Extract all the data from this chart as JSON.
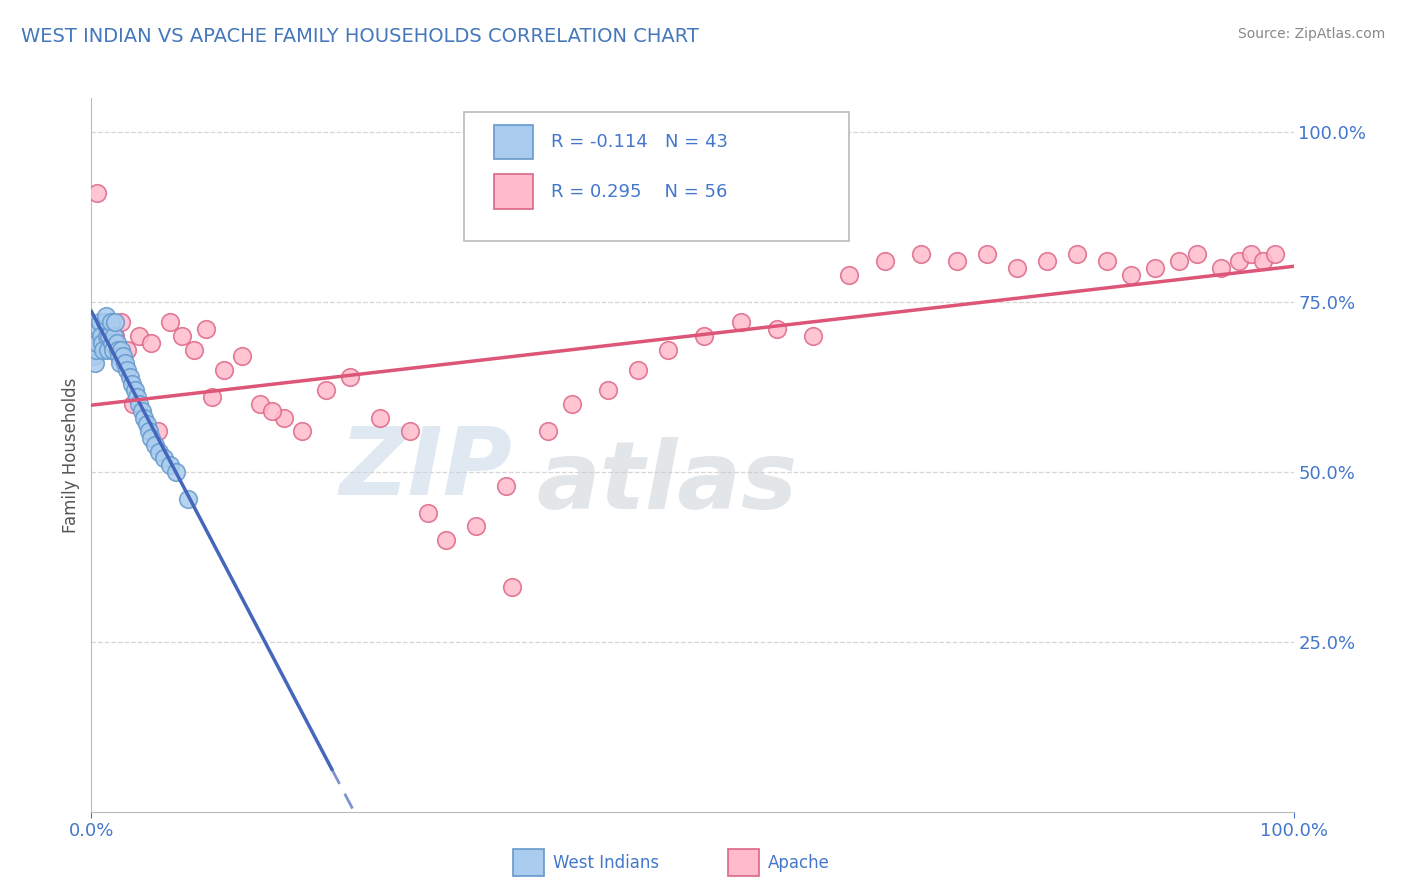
{
  "title": "WEST INDIAN VS APACHE FAMILY HOUSEHOLDS CORRELATION CHART",
  "source": "Source: ZipAtlas.com",
  "ylabel": "Family Households",
  "title_color": "#4477bb",
  "source_color": "#888888",
  "axis_label_color": "#555555",
  "tick_color": "#4477cc",
  "grid_color": "#cccccc",
  "background_color": "#ffffff",
  "west_indians_fill": "#aaccee",
  "west_indians_edge": "#6699cc",
  "apache_fill": "#ffbbcc",
  "apache_edge": "#dd6688",
  "trend_west_color": "#4466bb",
  "trend_apache_color": "#dd5577",
  "legend_r1": "R = -0.114",
  "legend_n1": "N = 43",
  "legend_r2": "R = 0.295",
  "legend_n2": "N = 56",
  "west_indians_label": "West Indians",
  "apache_label": "Apache",
  "xlim": [
    0.0,
    1.0
  ],
  "ylim": [
    0.0,
    1.05
  ],
  "ytick_positions": [
    0.25,
    0.5,
    0.75,
    1.0
  ],
  "ytick_labels": [
    "25.0%",
    "50.0%",
    "75.0%",
    "100.0%"
  ],
  "xtick_positions": [
    0.0,
    1.0
  ],
  "xtick_labels": [
    "0.0%",
    "100.0%"
  ],
  "west_indians_x": [
    0.002,
    0.003,
    0.004,
    0.005,
    0.006,
    0.007,
    0.008,
    0.009,
    0.01,
    0.011,
    0.012,
    0.013,
    0.014,
    0.015,
    0.016,
    0.017,
    0.018,
    0.019,
    0.02,
    0.021,
    0.022,
    0.023,
    0.024,
    0.025,
    0.026,
    0.028,
    0.03,
    0.032,
    0.034,
    0.036,
    0.038,
    0.04,
    0.042,
    0.044,
    0.046,
    0.048,
    0.05,
    0.053,
    0.056,
    0.06,
    0.065,
    0.07,
    0.08
  ],
  "west_indians_y": [
    0.67,
    0.66,
    0.68,
    0.69,
    0.71,
    0.72,
    0.7,
    0.69,
    0.68,
    0.72,
    0.73,
    0.7,
    0.68,
    0.7,
    0.72,
    0.69,
    0.68,
    0.7,
    0.72,
    0.69,
    0.68,
    0.67,
    0.66,
    0.68,
    0.67,
    0.66,
    0.65,
    0.64,
    0.63,
    0.62,
    0.61,
    0.6,
    0.59,
    0.58,
    0.57,
    0.56,
    0.55,
    0.54,
    0.53,
    0.52,
    0.51,
    0.5,
    0.46
  ],
  "apache_x": [
    0.005,
    0.015,
    0.02,
    0.025,
    0.03,
    0.04,
    0.05,
    0.065,
    0.075,
    0.085,
    0.095,
    0.11,
    0.125,
    0.14,
    0.16,
    0.175,
    0.195,
    0.215,
    0.24,
    0.265,
    0.295,
    0.32,
    0.345,
    0.38,
    0.4,
    0.43,
    0.455,
    0.48,
    0.51,
    0.54,
    0.57,
    0.6,
    0.63,
    0.66,
    0.69,
    0.72,
    0.745,
    0.77,
    0.795,
    0.82,
    0.845,
    0.865,
    0.885,
    0.905,
    0.92,
    0.94,
    0.955,
    0.965,
    0.975,
    0.985,
    0.035,
    0.055,
    0.1,
    0.15,
    0.28,
    0.35
  ],
  "apache_y": [
    0.91,
    0.69,
    0.7,
    0.72,
    0.68,
    0.7,
    0.69,
    0.72,
    0.7,
    0.68,
    0.71,
    0.65,
    0.67,
    0.6,
    0.58,
    0.56,
    0.62,
    0.64,
    0.58,
    0.56,
    0.4,
    0.42,
    0.48,
    0.56,
    0.6,
    0.62,
    0.65,
    0.68,
    0.7,
    0.72,
    0.71,
    0.7,
    0.79,
    0.81,
    0.82,
    0.81,
    0.82,
    0.8,
    0.81,
    0.82,
    0.81,
    0.79,
    0.8,
    0.81,
    0.82,
    0.8,
    0.81,
    0.82,
    0.81,
    0.82,
    0.6,
    0.56,
    0.61,
    0.59,
    0.44,
    0.33
  ]
}
